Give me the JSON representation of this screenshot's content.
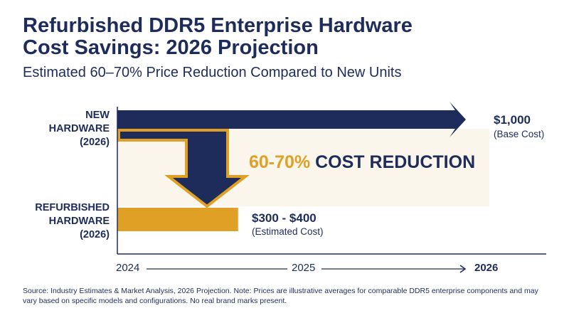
{
  "title_line1": "Refurbished DDR5 Enterprise Hardware",
  "title_line2": "Cost Savings: 2026 Projection",
  "subtitle": "Estimated 60–70% Price Reduction Compared to New Units",
  "colors": {
    "navy": "#1d2c5b",
    "gold": "#e0a025",
    "cream": "#faf6ec"
  },
  "chart_data": {
    "type": "bar",
    "orientation": "horizontal",
    "categories": [
      "NEW HARDWARE (2026)",
      "REFURBISHED HARDWARE (2026)"
    ],
    "category_lines": [
      [
        "NEW",
        "HARDWARE",
        "(2026)"
      ],
      [
        "REFURBISHED",
        "HARDWARE",
        "(2026)"
      ]
    ],
    "values": [
      1000,
      350
    ],
    "value_labels": [
      "$1,000",
      "$300 - $400"
    ],
    "value_notes": [
      "(Base Cost)",
      "(Estimated Cost)"
    ],
    "x_ticks": [
      "2024",
      "2025",
      "2026"
    ],
    "annotation": {
      "percent": "60-70%",
      "text": " COST REDUCTION"
    }
  },
  "source_note": "Source: Industry Estimates & Market Analysis, 2026 Projection. Note: Prices are illustrative averages for comparable DDR5 enterprise components and may vary based on specific models and configurations. No real brand marks present."
}
